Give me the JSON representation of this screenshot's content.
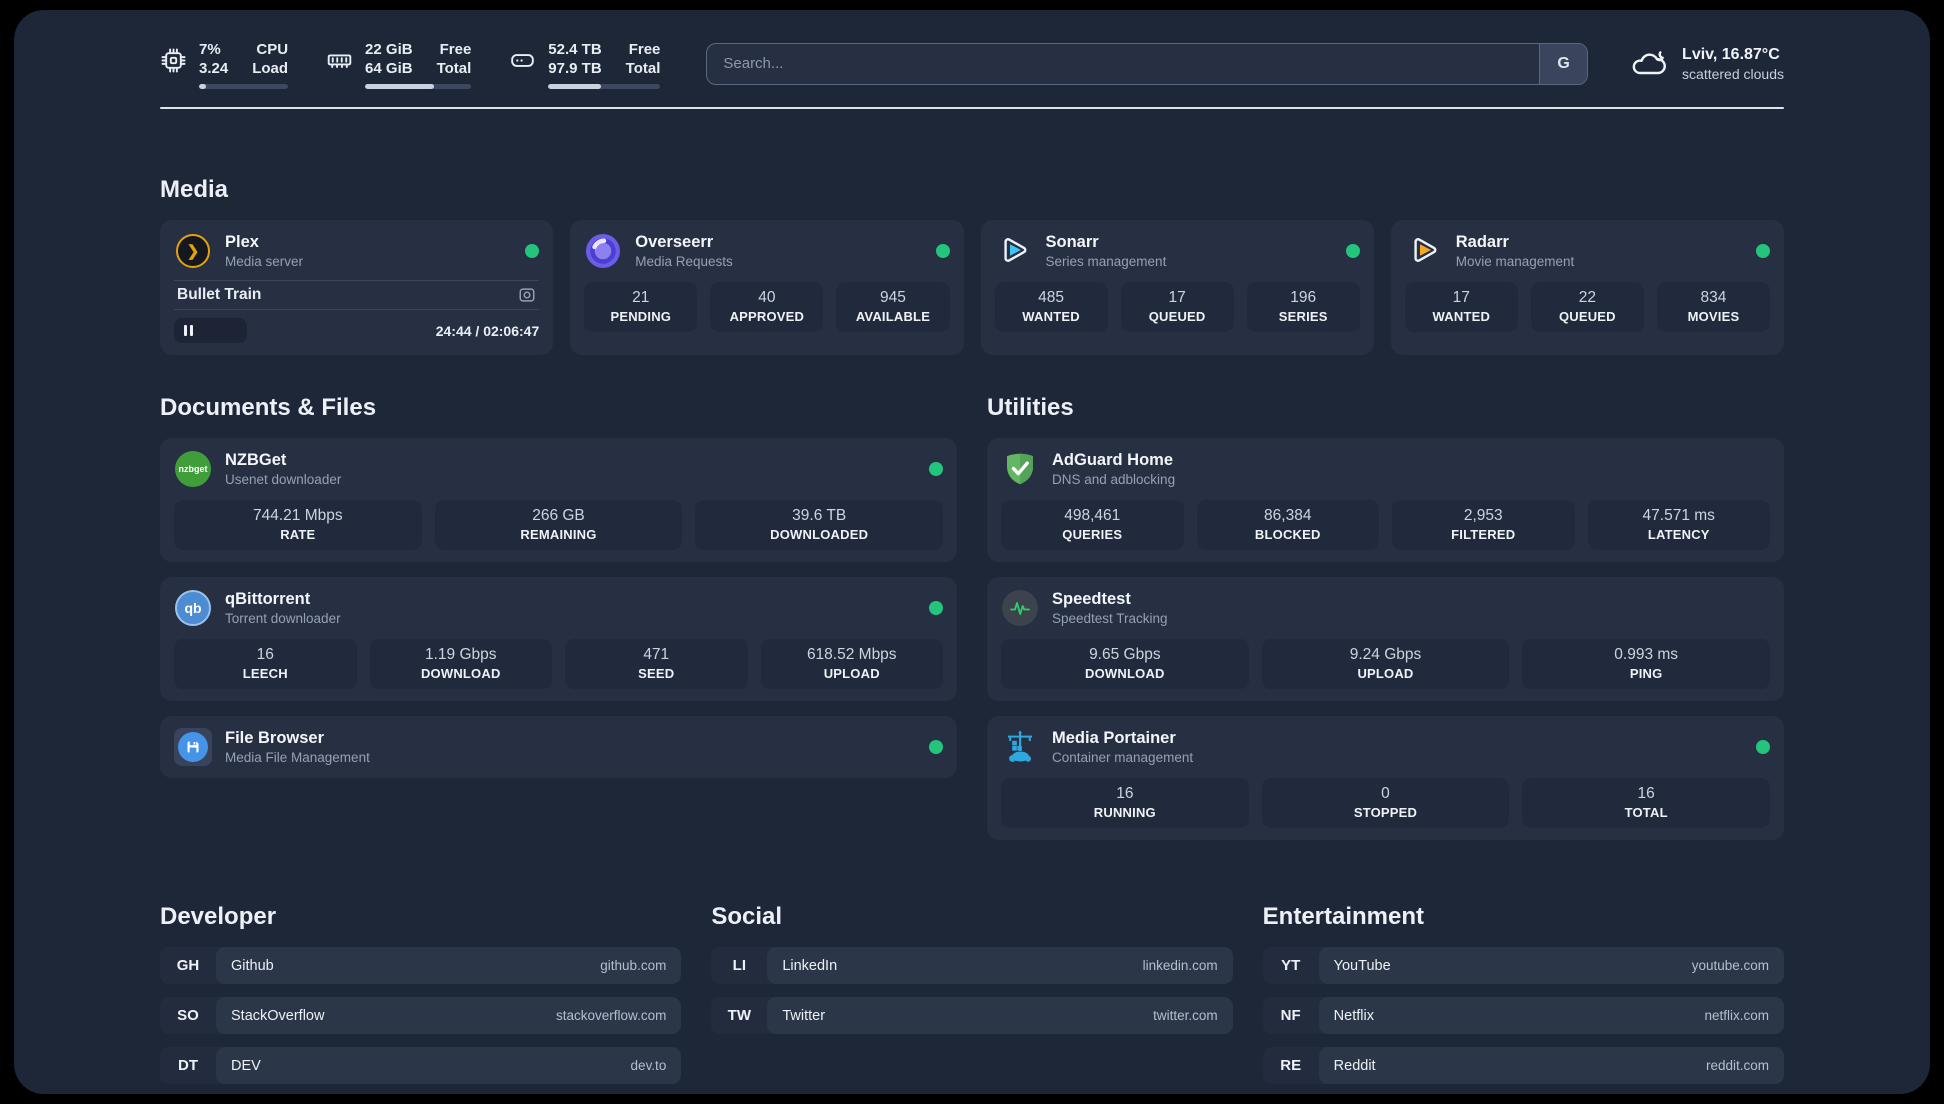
{
  "colors": {
    "status_green": "#23c57d",
    "progress_fill": "#c9d2e0"
  },
  "topbar": {
    "metrics": [
      {
        "icon": "cpu-icon",
        "values": [
          "7%",
          "3.24"
        ],
        "labels": [
          "CPU",
          "Load"
        ],
        "progress_percent": 8
      },
      {
        "icon": "memory-icon",
        "values": [
          "22 GiB",
          "64 GiB"
        ],
        "labels": [
          "Free",
          "Total"
        ],
        "progress_percent": 65
      },
      {
        "icon": "disk-icon",
        "values": [
          "52.4 TB",
          "97.9 TB"
        ],
        "labels": [
          "Free",
          "Total"
        ],
        "progress_percent": 47
      }
    ],
    "search": {
      "placeholder": "Search...",
      "engine_button_label": "G"
    },
    "weather": {
      "icon": "cloud-icon",
      "location_temperature": "Lviv, 16.87°C",
      "condition": "scattered clouds"
    }
  },
  "sections": {
    "media": {
      "title": "Media",
      "apps": [
        {
          "icon": "plex-icon",
          "name": "Plex",
          "description": "Media server",
          "status_dot": true,
          "player": {
            "now_playing": "Bullet Train",
            "state": "paused",
            "time_display": "24:44 / 02:06:47",
            "progress_percent": 20
          }
        },
        {
          "icon": "overseerr-icon",
          "name": "Overseerr",
          "description": "Media Requests",
          "status_dot": true,
          "stats": [
            {
              "value": "21",
              "label": "PENDING"
            },
            {
              "value": "40",
              "label": "APPROVED"
            },
            {
              "value": "945",
              "label": "AVAILABLE"
            }
          ]
        },
        {
          "icon": "sonarr-icon",
          "name": "Sonarr",
          "description": "Series management",
          "status_dot": true,
          "stats": [
            {
              "value": "485",
              "label": "WANTED"
            },
            {
              "value": "17",
              "label": "QUEUED"
            },
            {
              "value": "196",
              "label": "SERIES"
            }
          ]
        },
        {
          "icon": "radarr-icon",
          "name": "Radarr",
          "description": "Movie management",
          "status_dot": true,
          "stats": [
            {
              "value": "17",
              "label": "WANTED"
            },
            {
              "value": "22",
              "label": "QUEUED"
            },
            {
              "value": "834",
              "label": "MOVIES"
            }
          ]
        }
      ]
    },
    "documents": {
      "title": "Documents & Files",
      "apps": [
        {
          "icon": "nzbget-icon",
          "name": "NZBGet",
          "description": "Usenet downloader",
          "status_dot": true,
          "stats": [
            {
              "value": "744.21 Mbps",
              "label": "RATE"
            },
            {
              "value": "266 GB",
              "label": "REMAINING"
            },
            {
              "value": "39.6 TB",
              "label": "DOWNLOADED"
            }
          ]
        },
        {
          "icon": "qbittorrent-icon",
          "name": "qBittorrent",
          "description": "Torrent downloader",
          "status_dot": true,
          "stats": [
            {
              "value": "16",
              "label": "LEECH"
            },
            {
              "value": "1.19 Gbps",
              "label": "DOWNLOAD"
            },
            {
              "value": "471",
              "label": "SEED"
            },
            {
              "value": "618.52 Mbps",
              "label": "UPLOAD"
            }
          ]
        },
        {
          "icon": "filebrowser-icon",
          "name": "File Browser",
          "description": "Media File Management",
          "status_dot": true
        }
      ]
    },
    "utilities": {
      "title": "Utilities",
      "apps": [
        {
          "icon": "adguard-icon",
          "name": "AdGuard Home",
          "description": "DNS and adblocking",
          "status_dot": false,
          "stats": [
            {
              "value": "498,461",
              "label": "QUERIES"
            },
            {
              "value": "86,384",
              "label": "BLOCKED"
            },
            {
              "value": "2,953",
              "label": "FILTERED"
            },
            {
              "value": "47.571 ms",
              "label": "LATENCY"
            }
          ]
        },
        {
          "icon": "speedtest-icon",
          "name": "Speedtest",
          "description": "Speedtest Tracking",
          "status_dot": false,
          "stats": [
            {
              "value": "9.65 Gbps",
              "label": "DOWNLOAD"
            },
            {
              "value": "9.24 Gbps",
              "label": "UPLOAD"
            },
            {
              "value": "0.993 ms",
              "label": "PING"
            }
          ]
        },
        {
          "icon": "portainer-icon",
          "name": "Media Portainer",
          "description": "Container management",
          "status_dot": true,
          "stats": [
            {
              "value": "16",
              "label": "RUNNING"
            },
            {
              "value": "0",
              "label": "STOPPED"
            },
            {
              "value": "16",
              "label": "TOTAL"
            }
          ]
        }
      ]
    }
  },
  "bookmarks": [
    {
      "title": "Developer",
      "links": [
        {
          "abbr": "GH",
          "name": "Github",
          "url": "github.com"
        },
        {
          "abbr": "SO",
          "name": "StackOverflow",
          "url": "stackoverflow.com"
        },
        {
          "abbr": "DT",
          "name": "DEV",
          "url": "dev.to"
        }
      ]
    },
    {
      "title": "Social",
      "links": [
        {
          "abbr": "LI",
          "name": "LinkedIn",
          "url": "linkedin.com"
        },
        {
          "abbr": "TW",
          "name": "Twitter",
          "url": "twitter.com"
        }
      ]
    },
    {
      "title": "Entertainment",
      "links": [
        {
          "abbr": "YT",
          "name": "YouTube",
          "url": "youtube.com"
        },
        {
          "abbr": "NF",
          "name": "Netflix",
          "url": "netflix.com"
        },
        {
          "abbr": "RE",
          "name": "Reddit",
          "url": "reddit.com"
        }
      ]
    }
  ]
}
